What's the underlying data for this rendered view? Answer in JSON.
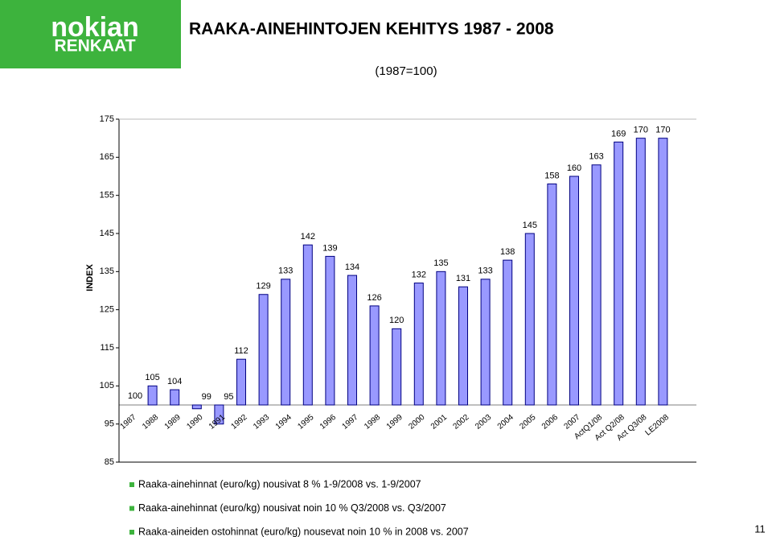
{
  "logo": {
    "top": "nokian",
    "bottom": "RENKAAT"
  },
  "chart_data": {
    "type": "bar",
    "title": "RAAKA-AINEHINTOJEN KEHITYS 1987 - 2008",
    "subtitle": "(1987=100)",
    "y_label": "INDEX",
    "categories": [
      "1987",
      "1988",
      "1989",
      "1990",
      "1991",
      "1992",
      "1993",
      "1994",
      "1995",
      "1996",
      "1997",
      "1998",
      "1999",
      "2000",
      "2001",
      "2002",
      "2003",
      "2004",
      "2005",
      "2006",
      "2007",
      "ActQ1/08",
      "Act Q2/08",
      "Act Q3/08",
      "LE2008"
    ],
    "values": [
      100,
      105,
      104,
      99,
      95,
      112,
      129,
      133,
      142,
      139,
      134,
      126,
      120,
      132,
      135,
      131,
      133,
      138,
      145,
      158,
      160,
      163,
      169,
      170,
      170
    ],
    "bar_base": 100,
    "color": "#9999ff",
    "ylim": [
      85,
      175
    ],
    "yticks": [
      85,
      95,
      105,
      115,
      125,
      135,
      145,
      155,
      165,
      175
    ]
  },
  "notes": [
    "Raaka-ainehinnat (euro/kg) nousivat  8 % 1-9/2008 vs. 1-9/2007",
    "Raaka-ainehinnat (euro/kg) nousivat noin 10 % Q3/2008 vs. Q3/2007",
    "Raaka-aineiden ostohinnat (euro/kg) nousevat noin 10 % in 2008 vs. 2007"
  ],
  "page_number": "11"
}
